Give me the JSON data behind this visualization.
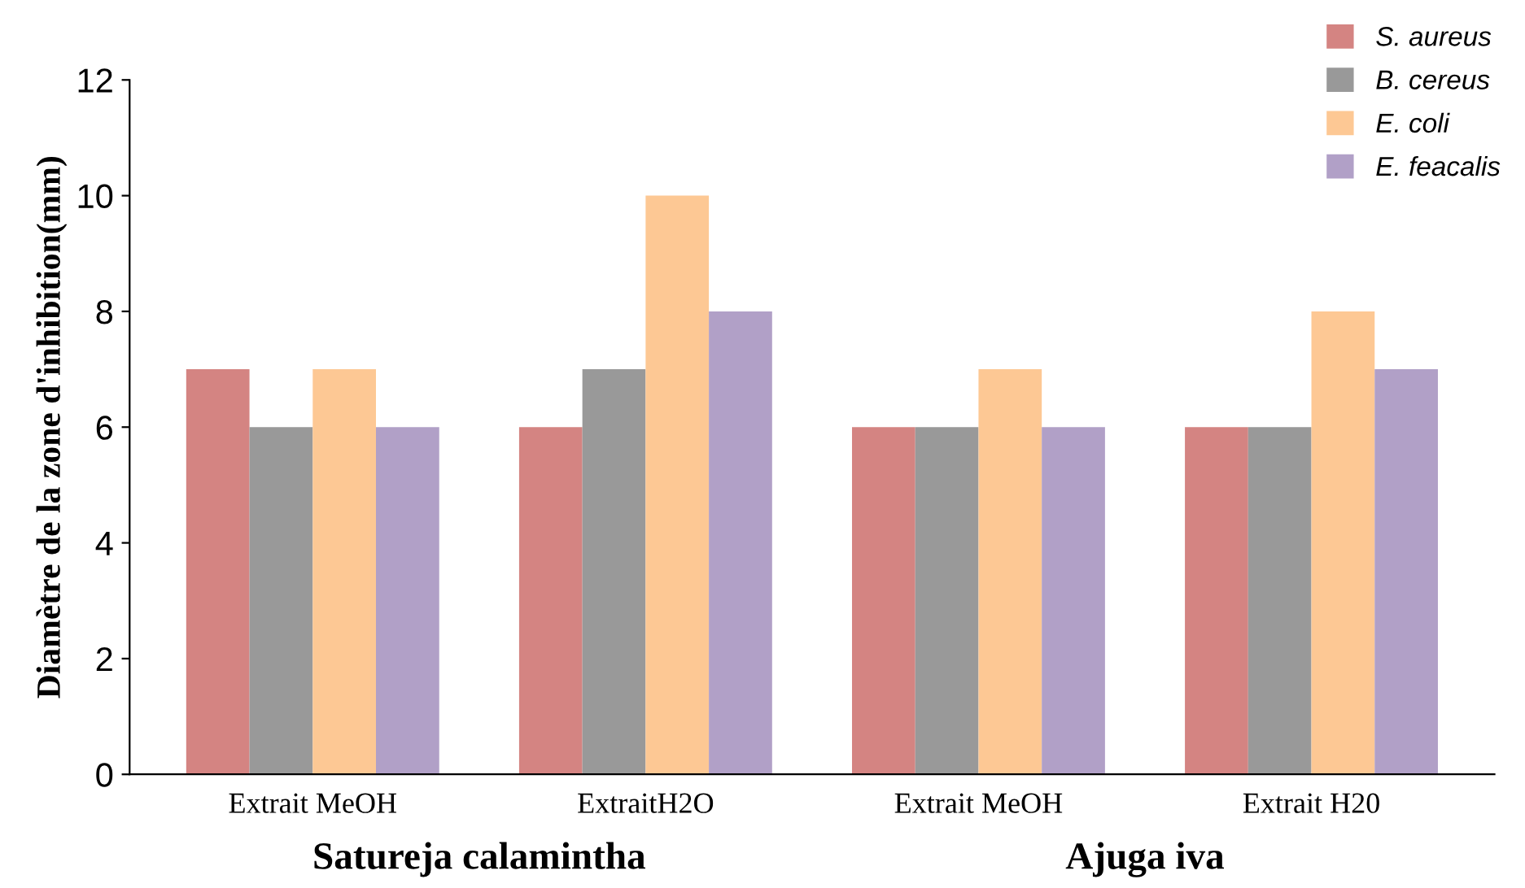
{
  "chart_data": {
    "type": "bar",
    "ylabel": "Diamètre de la zone d'inhibition(mm)",
    "categories": [
      "Extrait MeOH",
      "ExtraitH2O",
      "Extrait MeOH",
      "Extrait H20"
    ],
    "series": [
      {
        "name": "S. aureus",
        "color": "#d48482",
        "values": [
          7,
          6,
          6,
          6
        ]
      },
      {
        "name": "B. cereus",
        "color": "#999999",
        "values": [
          6,
          7,
          6,
          6
        ]
      },
      {
        "name": "E. coli",
        "color": "#fdc894",
        "values": [
          7,
          10,
          7,
          8
        ]
      },
      {
        "name": "E. feacalis",
        "color": "#b1a0c7",
        "values": [
          6,
          8,
          6,
          7
        ]
      }
    ],
    "annotations": [
      "Satureja calamintha",
      "Ajuga iva"
    ],
    "ylim": [
      0,
      12
    ],
    "yticks": [
      0,
      2,
      4,
      6,
      8,
      10,
      12
    ],
    "grid": false,
    "legend": "top right"
  }
}
